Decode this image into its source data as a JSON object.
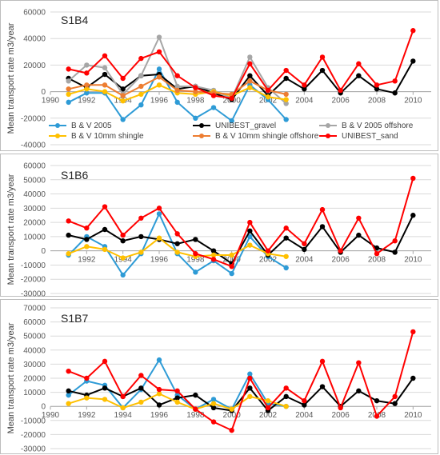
{
  "chart_data": [
    {
      "type": "line",
      "title": "S1B4",
      "ylabel": "Mean transport rate m3/year",
      "xlabel": "",
      "xlim": [
        1990,
        2011
      ],
      "ylim": [
        -40000,
        60000
      ],
      "xticks": [
        1990,
        1992,
        1994,
        1996,
        1998,
        2000,
        2002,
        2004,
        2006,
        2008,
        2010
      ],
      "yticks": [
        -40000,
        -20000,
        0,
        20000,
        40000,
        60000
      ],
      "grid": true,
      "legend_position": "bottom",
      "series": [
        {
          "name": "B & V 2005",
          "color": "#2E9BD6",
          "x": [
            1991,
            1992,
            1993,
            1994,
            1995,
            1996,
            1997,
            1998,
            1999,
            2000,
            2001,
            2002,
            2003
          ],
          "y": [
            -8000,
            -1000,
            -1000,
            -21000,
            -10000,
            17000,
            -8000,
            -20000,
            -12000,
            -22000,
            5000,
            -6000,
            -21000
          ]
        },
        {
          "name": "UNIBEST_gravel",
          "color": "#000000",
          "x": [
            1991,
            1992,
            1993,
            1994,
            1995,
            1996,
            1997,
            1998,
            1999,
            2000,
            2001,
            2002,
            2003,
            2004,
            2005,
            2006,
            2007,
            2008,
            2009,
            2010
          ],
          "y": [
            10000,
            3000,
            13000,
            2000,
            12000,
            13000,
            2000,
            4000,
            -1000,
            -6000,
            12000,
            -3000,
            10000,
            2000,
            16000,
            -1000,
            12000,
            2000,
            -1000,
            23000
          ]
        },
        {
          "name": "B & V 2005 offshore",
          "color": "#A6A6A6",
          "x": [
            1991,
            1992,
            1993,
            1994,
            1995,
            1996,
            1997,
            1998,
            1999,
            2000,
            2001,
            2002,
            2003
          ],
          "y": [
            8000,
            20000,
            18000,
            -2000,
            12000,
            41000,
            4000,
            4000,
            1000,
            -5000,
            26000,
            3000,
            -9000
          ]
        },
        {
          "name": "B & V 10mm shingle",
          "color": "#FFC000",
          "x": [
            1991,
            1992,
            1993,
            1994,
            1995,
            1996,
            1997,
            1998,
            1999,
            2000,
            2001,
            2002,
            2003
          ],
          "y": [
            -2000,
            2000,
            0,
            -7000,
            -2000,
            5000,
            -1000,
            -2000,
            0,
            -3000,
            3000,
            -4000,
            -6000
          ]
        },
        {
          "name": "B & V 10mm shingle offshore",
          "color": "#ED7D31",
          "x": [
            1991,
            1992,
            1993,
            1994,
            1995,
            1996,
            1997,
            1998,
            1999,
            2000,
            2001,
            2002,
            2003
          ],
          "y": [
            2000,
            5000,
            5000,
            -3000,
            4000,
            11000,
            1000,
            0,
            -1000,
            -2000,
            8000,
            1000,
            -2000
          ]
        },
        {
          "name": "UNIBEST_sand",
          "color": "#FF0000",
          "x": [
            1991,
            1992,
            1993,
            1994,
            1995,
            1996,
            1997,
            1998,
            1999,
            2000,
            2001,
            2002,
            2003,
            2004,
            2005,
            2006,
            2007,
            2008,
            2009,
            2010
          ],
          "y": [
            17000,
            14000,
            27000,
            10000,
            25000,
            30000,
            12000,
            3000,
            -3000,
            -5000,
            21000,
            1000,
            16000,
            5000,
            26000,
            1000,
            21000,
            5000,
            8000,
            46000
          ]
        }
      ]
    },
    {
      "type": "line",
      "title": "S1B6",
      "ylabel": "Mean transport rate m3/year",
      "xlabel": "",
      "xlim": [
        1990,
        2011
      ],
      "ylim": [
        -30000,
        60000
      ],
      "xticks": [
        1992,
        1994,
        1996,
        1998,
        2000,
        2002,
        2004,
        2006,
        2008,
        2010
      ],
      "yticks": [
        -30000,
        -20000,
        -10000,
        0,
        10000,
        20000,
        30000,
        40000,
        50000,
        60000
      ],
      "grid": true,
      "series": [
        {
          "name": "B & V 2005",
          "color": "#2E9BD6",
          "x": [
            1991,
            1992,
            1993,
            1994,
            1995,
            1996,
            1997,
            1998,
            1999,
            2000,
            2001,
            2002,
            2003
          ],
          "y": [
            -3000,
            10000,
            3000,
            -17000,
            -2000,
            26000,
            -2000,
            -15000,
            -7000,
            -16000,
            10000,
            -4000,
            -12000
          ]
        },
        {
          "name": "UNIBEST_gravel",
          "color": "#000000",
          "x": [
            1991,
            1992,
            1993,
            1994,
            1995,
            1996,
            1997,
            1998,
            1999,
            2000,
            2001,
            2002,
            2003,
            2004,
            2005,
            2006,
            2007,
            2008,
            2009,
            2010
          ],
          "y": [
            11000,
            8000,
            15000,
            7000,
            10000,
            8000,
            5000,
            8000,
            0,
            -9000,
            14000,
            -3000,
            9000,
            1000,
            17000,
            -1000,
            11000,
            2000,
            -1000,
            25000
          ]
        },
        {
          "name": "B & V 10mm shingle",
          "color": "#FFC000",
          "x": [
            1991,
            1992,
            1993,
            1994,
            1995,
            1996,
            1997,
            1998,
            1999,
            2000,
            2001,
            2002,
            2003
          ],
          "y": [
            -2000,
            3000,
            1000,
            -5000,
            -1000,
            9000,
            -1000,
            -4000,
            -3000,
            -3000,
            4000,
            -2000,
            -4000
          ]
        },
        {
          "name": "UNIBEST_sand",
          "color": "#FF0000",
          "x": [
            1991,
            1992,
            1993,
            1994,
            1995,
            1996,
            1997,
            1998,
            1999,
            2000,
            2001,
            2002,
            2003,
            2004,
            2005,
            2006,
            2007,
            2008,
            2009,
            2010
          ],
          "y": [
            21000,
            16000,
            31000,
            11000,
            23000,
            30000,
            12000,
            -2000,
            -6000,
            -11000,
            20000,
            0,
            16000,
            5000,
            29000,
            0,
            23000,
            -2000,
            7000,
            51000
          ]
        }
      ]
    },
    {
      "type": "line",
      "title": "S1B7",
      "ylabel": "Mean transport rate m3/year",
      "xlabel": "",
      "xlim": [
        1990,
        2011
      ],
      "ylim": [
        -30000,
        70000
      ],
      "xticks": [
        1990,
        1992,
        1994,
        1996,
        1998,
        2000,
        2002,
        2004,
        2006,
        2008,
        2010
      ],
      "yticks": [
        -30000,
        -20000,
        -10000,
        0,
        10000,
        20000,
        30000,
        40000,
        50000,
        60000,
        70000
      ],
      "grid": true,
      "series": [
        {
          "name": "B & V 2005",
          "color": "#2E9BD6",
          "x": [
            1991,
            1992,
            1993,
            1994,
            1995,
            1996,
            1997,
            1998,
            1999,
            2000,
            2001,
            2002,
            2003
          ],
          "y": [
            8000,
            18000,
            15000,
            -1000,
            12000,
            33000,
            8000,
            -2000,
            5000,
            -2000,
            23000,
            2000,
            0
          ]
        },
        {
          "name": "UNIBEST_gravel",
          "color": "#000000",
          "x": [
            1991,
            1992,
            1993,
            1994,
            1995,
            1996,
            1997,
            1998,
            1999,
            2000,
            2001,
            2002,
            2003,
            2004,
            2005,
            2006,
            2007,
            2008,
            2009,
            2010
          ],
          "y": [
            11000,
            8000,
            13000,
            7000,
            13000,
            1000,
            6000,
            8000,
            -1000,
            -3000,
            13000,
            -3000,
            7000,
            1000,
            14000,
            0,
            11000,
            4000,
            2000,
            20000
          ]
        },
        {
          "name": "B & V 10mm shingle",
          "color": "#FFC000",
          "x": [
            1991,
            1992,
            1993,
            1994,
            1995,
            1996,
            1997,
            1998,
            1999,
            2000,
            2001,
            2002,
            2003
          ],
          "y": [
            2000,
            6000,
            5000,
            -1000,
            3000,
            9000,
            3000,
            -2000,
            2000,
            -2000,
            7000,
            4000,
            0
          ]
        },
        {
          "name": "UNIBEST_sand",
          "color": "#FF0000",
          "x": [
            1991,
            1992,
            1993,
            1994,
            1995,
            1996,
            1997,
            1998,
            1999,
            2000,
            2001,
            2002,
            2003,
            2004,
            2005,
            2006,
            2007,
            2008,
            2009,
            2010
          ],
          "y": [
            25000,
            20000,
            32000,
            7000,
            22000,
            12000,
            11000,
            -2000,
            -11000,
            -17000,
            20000,
            -1000,
            13000,
            4000,
            32000,
            -1000,
            31000,
            -7000,
            7000,
            53000
          ]
        }
      ]
    }
  ]
}
